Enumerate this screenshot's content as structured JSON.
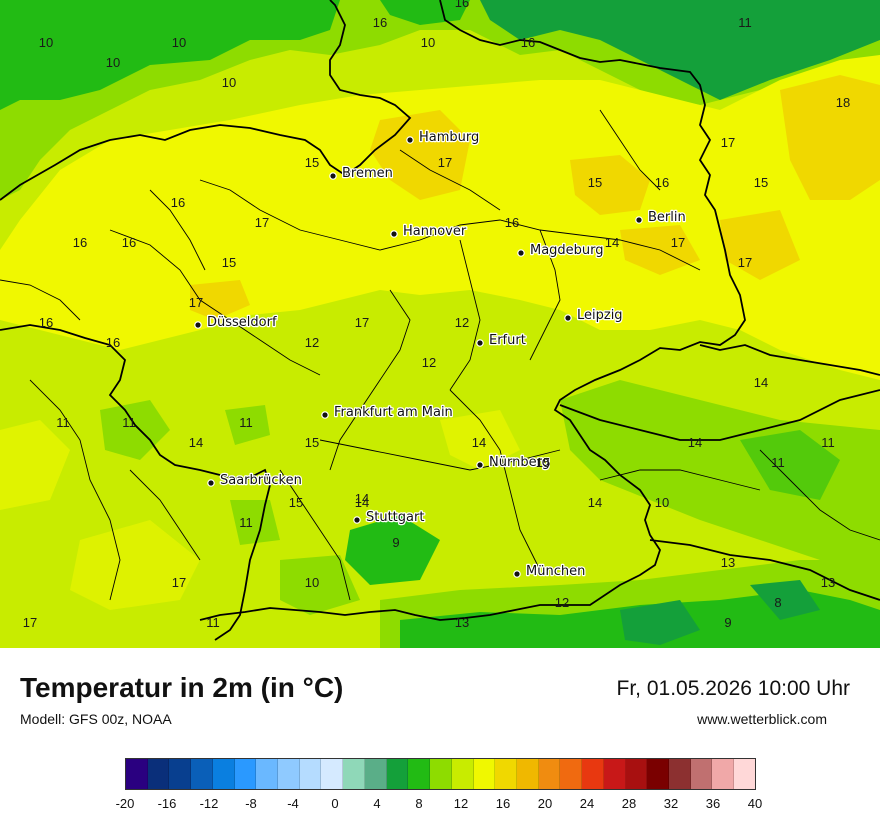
{
  "title": "Temperatur in 2m (in °C)",
  "model": "Modell: GFS 00z, NOAA",
  "datetime": "Fr, 01.05.2026 10:00 Uhr",
  "website": "www.wetterblick.com",
  "cities": [
    {
      "name": "Hamburg",
      "id": "hamburg"
    },
    {
      "name": "Bremen",
      "id": "bremen"
    },
    {
      "name": "Hannover",
      "id": "hannover"
    },
    {
      "name": "Berlin",
      "id": "berlin"
    },
    {
      "name": "Magdeburg",
      "id": "magdeburg"
    },
    {
      "name": "Leipzig",
      "id": "leipzig"
    },
    {
      "name": "Düsseldorf",
      "id": "duesseldorf"
    },
    {
      "name": "Erfurt",
      "id": "erfurt"
    },
    {
      "name": "Frankfurt am Main",
      "id": "frankfurt"
    },
    {
      "name": "Nürnberg",
      "id": "nuernberg"
    },
    {
      "name": "Saarbrücken",
      "id": "saarbruecken"
    },
    {
      "name": "Stuttgart",
      "id": "stuttgart"
    },
    {
      "name": "München",
      "id": "muenchen"
    }
  ],
  "isotherm_labels": [
    "10",
    "10",
    "10",
    "10",
    "16",
    "10",
    "16",
    "11",
    "18",
    "15",
    "17",
    "17",
    "15",
    "16",
    "16",
    "17",
    "16",
    "15",
    "16",
    "16",
    "15",
    "14",
    "17",
    "17",
    "17",
    "16",
    "16",
    "17",
    "12",
    "12",
    "12",
    "14",
    "11",
    "14",
    "14",
    "11",
    "15",
    "11",
    "15",
    "14",
    "11",
    "14",
    "15",
    "14",
    "10",
    "9",
    "17",
    "10",
    "13",
    "17",
    "11",
    "12",
    "13",
    "9",
    "8",
    "16",
    "11",
    "11",
    "14",
    "13"
  ],
  "legend": {
    "ticks": [
      "-20",
      "-16",
      "-12",
      "-8",
      "-4",
      "0",
      "4",
      "8",
      "12",
      "16",
      "20",
      "24",
      "28",
      "32",
      "36",
      "40"
    ],
    "colors": [
      "#2a0080",
      "#0a2f7a",
      "#083f8f",
      "#0a5fb8",
      "#0a7fe0",
      "#2a99ff",
      "#6ab8ff",
      "#8fcaff",
      "#b5dcff",
      "#d5eaff",
      "#8fd8b8",
      "#5aae88",
      "#14a03a",
      "#22bb14",
      "#8edc00",
      "#c8ec00",
      "#f0f800",
      "#f0d800",
      "#f0b800",
      "#f08c10",
      "#f06a10",
      "#e83810",
      "#c81818",
      "#a81010",
      "#7a0000",
      "#8c3030",
      "#c07070",
      "#f0a8a8",
      "#ffd8d8"
    ]
  }
}
